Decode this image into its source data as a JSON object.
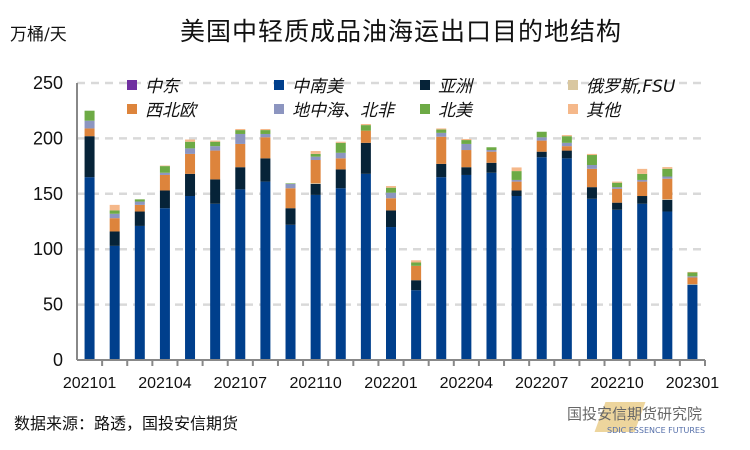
{
  "title": "美国中轻质成品油海运出口目的地结构",
  "unit": "万桶/天",
  "source": "数据来源：路透，国投安信期货",
  "watermark": {
    "text": "国投安信期货研究院",
    "subtext": "SDIC ESSENCE FUTURES"
  },
  "chart_data": {
    "type": "bar",
    "stacked": true,
    "title": "美国中轻质成品油海运出口目的地结构",
    "ylabel": "万桶/天",
    "ylim": [
      0,
      250
    ],
    "yticks": [
      0,
      50,
      100,
      150,
      200,
      250
    ],
    "grid": true,
    "legend_position": "top",
    "categories": [
      "202101",
      "202102",
      "202103",
      "202104",
      "202105",
      "202106",
      "202107",
      "202108",
      "202109",
      "202110",
      "202111",
      "202112",
      "202201",
      "202202",
      "202203",
      "202204",
      "202205",
      "202206",
      "202207",
      "202208",
      "202209",
      "202210",
      "202211",
      "202212",
      "202301"
    ],
    "xtick_labels": [
      "202101",
      "202104",
      "202107",
      "202110",
      "202201",
      "202204",
      "202207",
      "202210",
      "202301"
    ],
    "series": [
      {
        "name": "中南美",
        "color": "#003F8C",
        "values": [
          165,
          103,
          121,
          137,
          148,
          141,
          154,
          161,
          122,
          149,
          155,
          168,
          120,
          63,
          165,
          167,
          169,
          148,
          183,
          182,
          145.5,
          135.6,
          141,
          134,
          68
        ]
      },
      {
        "name": "亚洲",
        "color": "#062338",
        "values": [
          37,
          13,
          13,
          16,
          20,
          22,
          20,
          21,
          15,
          10,
          17,
          28,
          15,
          9,
          12,
          7,
          9,
          5,
          5,
          7,
          10.5,
          6.4,
          7,
          10.6,
          0
        ]
      },
      {
        "name": "俄罗斯,FSU",
        "color": "#D9C7A0",
        "values": [
          0,
          0,
          0,
          0,
          0,
          0,
          0,
          0,
          0,
          0.5,
          0,
          0,
          0,
          0,
          0,
          0,
          0,
          0,
          0,
          0,
          0,
          0,
          0,
          0.5,
          0.5
        ]
      },
      {
        "name": "西北欧",
        "color": "#DD843C",
        "values": [
          7,
          12,
          6,
          14,
          18,
          26,
          21,
          19,
          18,
          21,
          10,
          11,
          11,
          13,
          24.5,
          15.5,
          10,
          8,
          10,
          4,
          16.5,
          12.5,
          13,
          18.5,
          6
        ]
      },
      {
        "name": "地中海、北非",
        "color": "#8C95C0",
        "values": [
          7,
          4,
          3,
          2,
          5,
          4,
          9,
          3,
          4,
          3,
          5,
          0,
          5,
          0,
          3.5,
          5.5,
          1.5,
          1.5,
          3,
          3,
          3.5,
          1.5,
          1.5,
          2,
          1
        ]
      },
      {
        "name": "北美",
        "color": "#6DAA45",
        "values": [
          9,
          3,
          2,
          6,
          6,
          4,
          3.5,
          3.5,
          0.5,
          2.5,
          9,
          5,
          4.5,
          3,
          3,
          3.5,
          2.5,
          8,
          5,
          6,
          9,
          4,
          5.5,
          7,
          3.5
        ]
      },
      {
        "name": "其他",
        "color": "#F5B88A",
        "values": [
          0,
          5,
          0,
          0.5,
          2,
          1,
          1,
          1,
          0,
          2.6,
          1,
          1,
          1.5,
          2,
          1,
          1,
          0,
          3.3,
          0,
          1,
          1,
          1,
          4.5,
          1.5,
          0.5
        ]
      },
      {
        "name": "中东",
        "color": "#7030A0",
        "values": [
          0,
          0,
          0,
          0,
          0,
          0,
          0,
          0,
          0,
          0,
          0,
          0,
          0,
          0,
          0,
          0,
          0,
          0,
          0,
          0,
          0,
          0,
          0,
          0,
          0
        ]
      }
    ],
    "legend": [
      "中东",
      "中南美",
      "亚洲",
      "俄罗斯,FSU",
      "西北欧",
      "地中海、北非",
      "北美",
      "其他"
    ]
  }
}
